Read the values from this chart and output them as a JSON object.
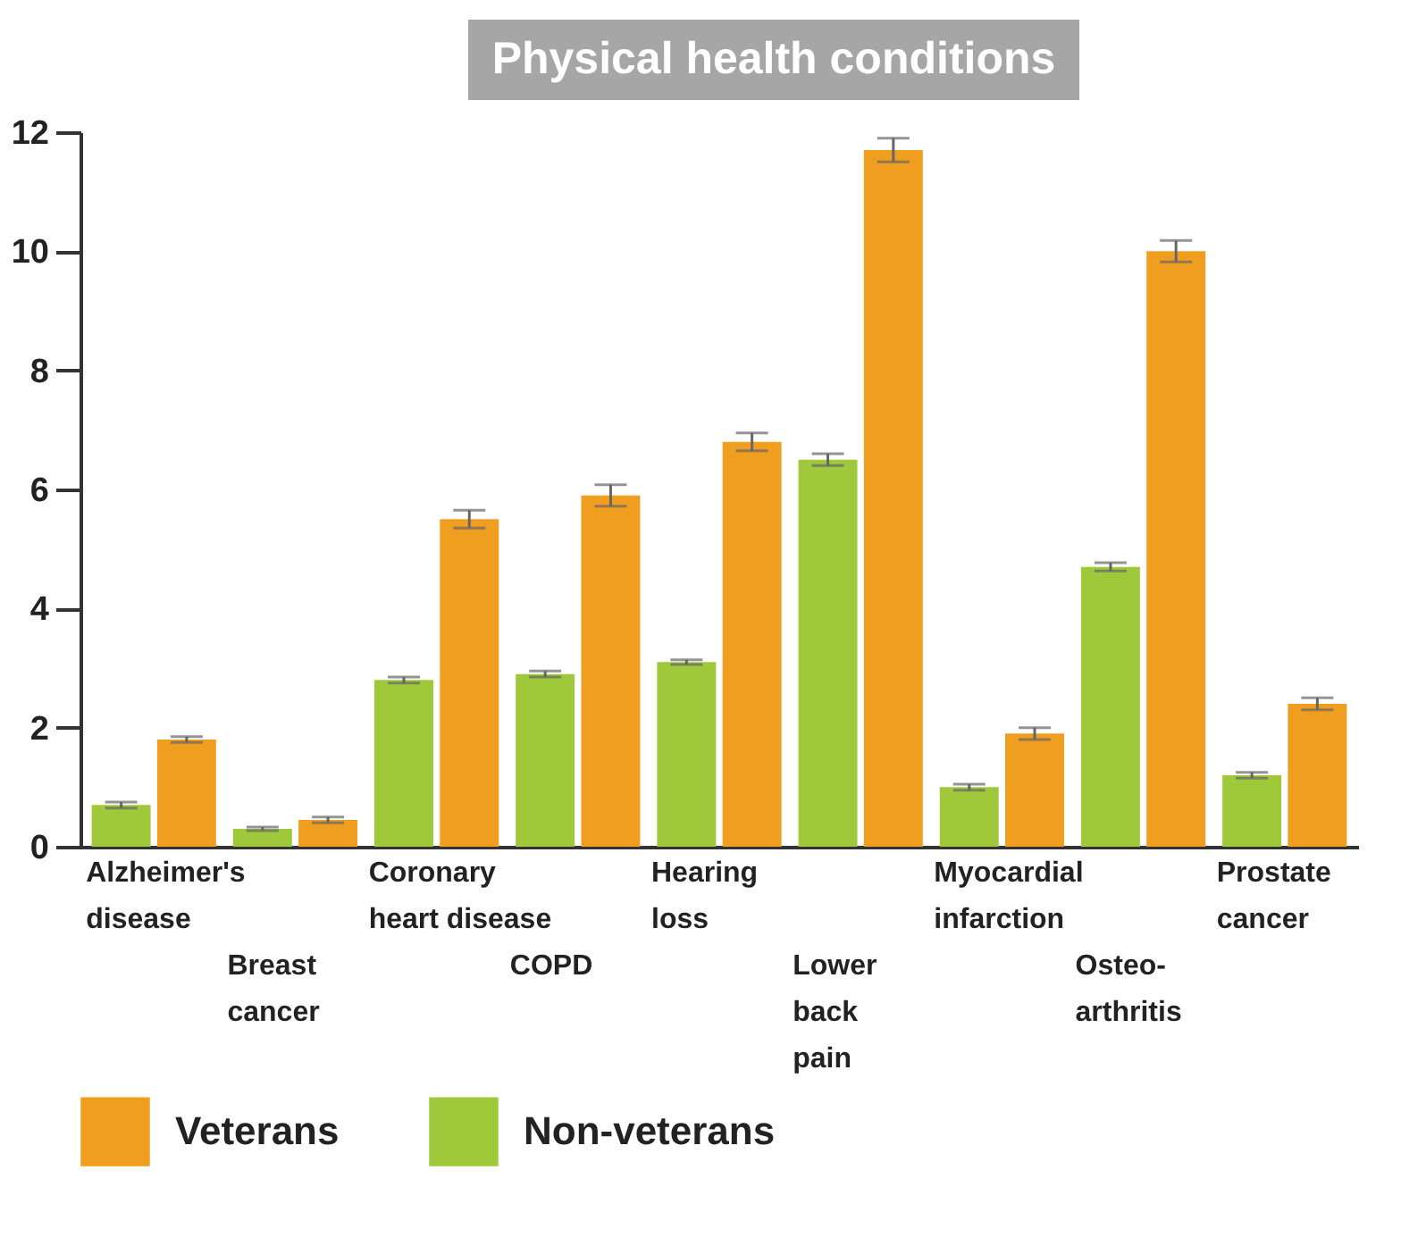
{
  "chart_data": {
    "type": "bar",
    "title": "Physical health conditions",
    "categories": [
      "Alzheimer's\ndisease",
      "Breast\ncancer",
      "Coronary\nheart disease",
      "COPD",
      "Hearing\nloss",
      "Lower\nback\npain",
      "Myocardial\ninfarction",
      "Osteo-\narthritis",
      "Prostate\ncancer"
    ],
    "series": [
      {
        "name": "Veterans",
        "color": "#f09e1f",
        "values": [
          1.8,
          0.45,
          5.5,
          5.9,
          6.8,
          11.7,
          1.9,
          10.0,
          2.4
        ],
        "errors": [
          0.05,
          0.05,
          0.15,
          0.18,
          0.15,
          0.2,
          0.1,
          0.18,
          0.1
        ]
      },
      {
        "name": "Non-veterans",
        "color": "#9fc93b",
        "values": [
          0.7,
          0.3,
          2.8,
          2.9,
          3.1,
          6.5,
          1.0,
          4.7,
          1.2
        ],
        "errors": [
          0.05,
          0.03,
          0.05,
          0.05,
          0.04,
          0.1,
          0.05,
          0.07,
          0.05
        ]
      }
    ],
    "ylim": [
      0,
      12
    ],
    "yticks": [
      0,
      2,
      4,
      6,
      8,
      10,
      12
    ],
    "grid": false,
    "legend": "bottom"
  }
}
